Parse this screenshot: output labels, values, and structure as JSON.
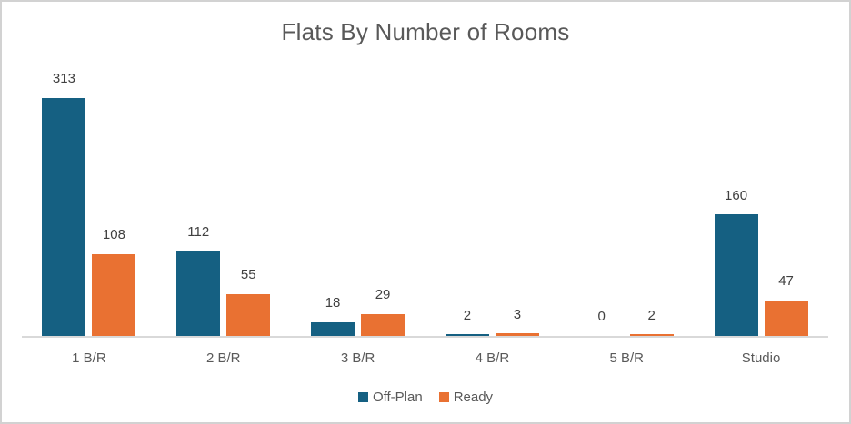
{
  "chart_data": {
    "type": "bar",
    "title": "Flats By Number of Rooms",
    "categories": [
      "1 B/R",
      "2 B/R",
      "3 B/R",
      "4 B/R",
      "5 B/R",
      "Studio"
    ],
    "series": [
      {
        "name": "Off-Plan",
        "color": "#156082",
        "values": [
          313,
          112,
          18,
          2,
          0,
          160
        ]
      },
      {
        "name": "Ready",
        "color": "#E97132",
        "values": [
          108,
          55,
          29,
          3,
          2,
          47
        ]
      }
    ],
    "ylim": [
      0,
      313
    ],
    "grid": false,
    "y_axis_visible": false,
    "data_labels_visible": true,
    "legend_position": "bottom",
    "colors": {
      "title_text": "#595959",
      "data_label_text": "#404040",
      "category_label_text": "#595959",
      "axis_line": "#D9D9D9",
      "frame_border": "#D2D2D2",
      "background": "#FFFFFF"
    }
  }
}
